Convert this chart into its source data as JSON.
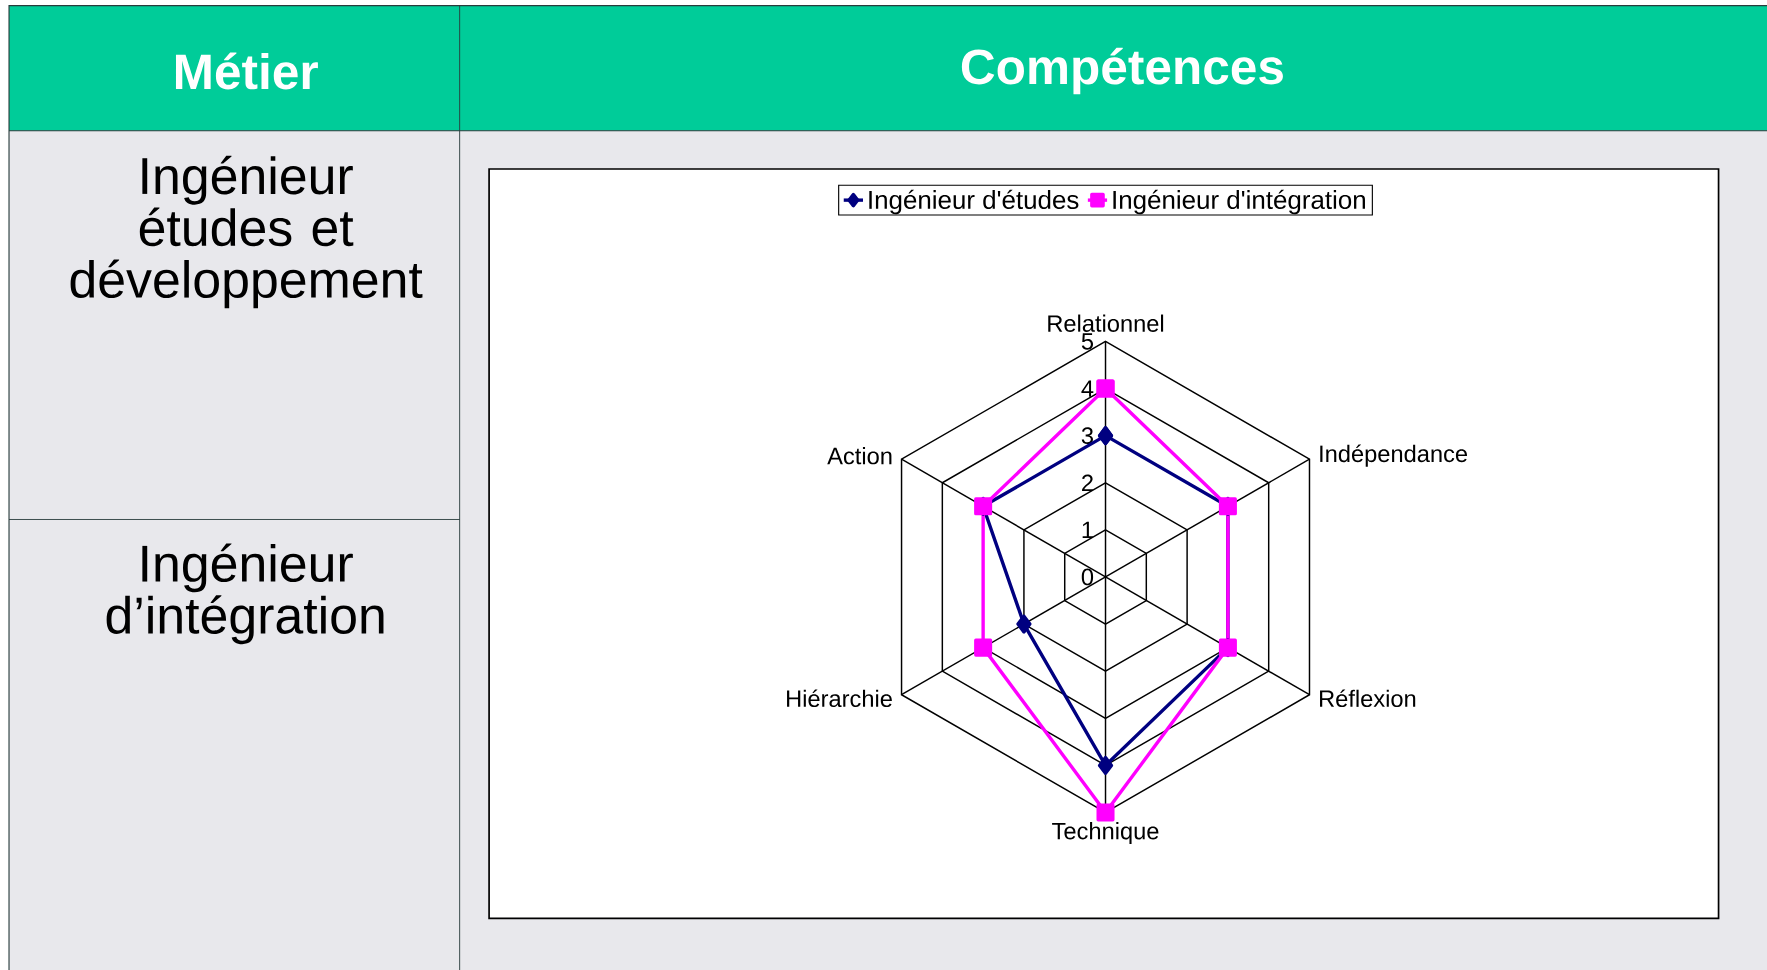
{
  "chart_data": {
    "type": "radar",
    "categories": [
      "Relationnel",
      "Indépendance",
      "Réflexion",
      "Technique",
      "Hiérarchie",
      "Action"
    ],
    "series": [
      {
        "name": "Ingénieur d'études",
        "color": "#000080",
        "marker": "diamond",
        "values": [
          3,
          3,
          3,
          4,
          2,
          3
        ]
      },
      {
        "name": "Ingénieur d'intégration",
        "color": "#ff00ff",
        "marker": "square",
        "values": [
          4,
          3,
          3,
          5,
          3,
          3
        ]
      }
    ],
    "ylim": [
      0,
      5
    ],
    "yticks": [
      0,
      1,
      2,
      3,
      4,
      5
    ],
    "grid": true,
    "legend": "top",
    "annotations": [
      "Métier",
      "Compétences",
      "Ingénieur études et développement",
      "Ingénieur d’intégration"
    ]
  }
}
